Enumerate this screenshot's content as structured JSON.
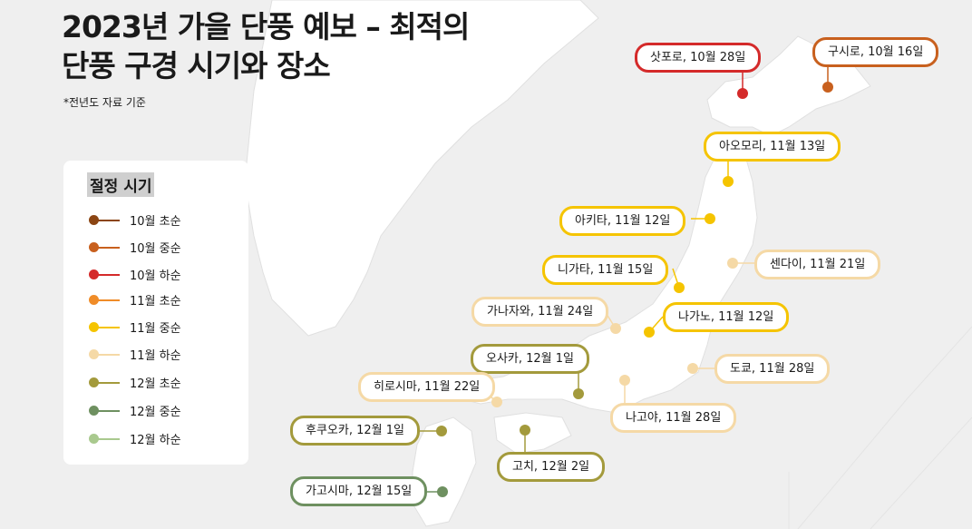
{
  "title_line1": "2023년 가을 단풍 예보 – 최적의",
  "title_line2": "단풍 구경 시기와 장소",
  "note": "*전년도 자료 기준",
  "legend": {
    "title": "절정 시기",
    "items": [
      {
        "label": "10월 초순",
        "color": "#8B4513"
      },
      {
        "label": "10월 중순",
        "color": "#C8601E"
      },
      {
        "label": "10월 하순",
        "color": "#D42A2A"
      },
      {
        "label": "11월 초순",
        "color": "#F08C28"
      },
      {
        "label": "11월 중순",
        "color": "#F5C400"
      },
      {
        "label": "11월 하순",
        "color": "#F5D9A6"
      },
      {
        "label": "12월 초순",
        "color": "#A39A3C"
      },
      {
        "label": "12월 중순",
        "color": "#6E9060"
      },
      {
        "label": "12월 하순",
        "color": "#A9C98E"
      }
    ]
  },
  "places": [
    {
      "label": "삿포로, 10월 28일",
      "color": "#D42A2A"
    },
    {
      "label": "구시로, 10월 16일",
      "color": "#C8601E"
    },
    {
      "label": "아오모리, 11월 13일",
      "color": "#F5C400"
    },
    {
      "label": "아키타, 11월 12일",
      "color": "#F5C400"
    },
    {
      "label": "센다이, 11월 21일",
      "color": "#F5D9A6"
    },
    {
      "label": "니가타, 11월 15일",
      "color": "#F5C400"
    },
    {
      "label": "가나자와, 11월 24일",
      "color": "#F5D9A6"
    },
    {
      "label": "나가노, 11월 12일",
      "color": "#F5C400"
    },
    {
      "label": "오사카, 12월 1일",
      "color": "#A39A3C"
    },
    {
      "label": "도쿄, 11월 28일",
      "color": "#F5D9A6"
    },
    {
      "label": "히로시마, 11월 22일",
      "color": "#F5D9A6"
    },
    {
      "label": "나고야, 11월 28일",
      "color": "#F5D9A6"
    },
    {
      "label": "후쿠오카, 12월 1일",
      "color": "#A39A3C"
    },
    {
      "label": "고치, 12월 2일",
      "color": "#A39A3C"
    },
    {
      "label": "가고시마, 12월 15일",
      "color": "#6E9060"
    }
  ]
}
